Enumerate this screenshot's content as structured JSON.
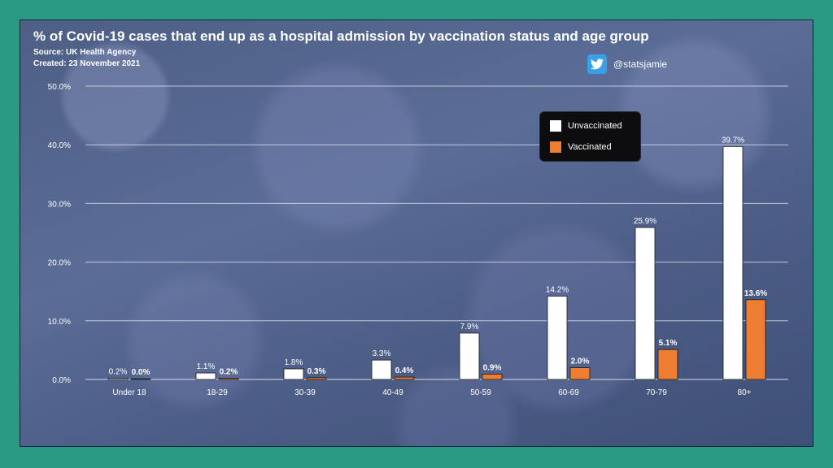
{
  "title": "% of Covid-19 cases that end up as a hospital admission by vaccination status and age group",
  "source": "Source: UK Health Agency",
  "created": "Created: 23 November 2021",
  "twitter": {
    "icon": "twitter-icon",
    "handle": "@statsjamie",
    "color": "#3aa0e6"
  },
  "colors": {
    "background": "#2b9a83",
    "unvaccinated": "#ffffff",
    "vaccinated": "#ed7d31"
  },
  "chart_data": {
    "type": "bar",
    "categories": [
      "Under 18",
      "18-29",
      "30-39",
      "40-49",
      "50-59",
      "60-69",
      "70-79",
      "80+"
    ],
    "series": [
      {
        "name": "Unvaccinated",
        "color": "#ffffff",
        "values": [
          0.2,
          1.1,
          1.8,
          3.3,
          7.9,
          14.2,
          25.9,
          39.7
        ]
      },
      {
        "name": "Vaccinated",
        "color": "#ed7d31",
        "values": [
          0.0,
          0.2,
          0.3,
          0.4,
          0.9,
          2.0,
          5.1,
          13.6
        ]
      }
    ],
    "ylim": [
      0,
      50
    ],
    "yticks": [
      0,
      10,
      20,
      30,
      40,
      50
    ],
    "ytick_labels": [
      "0.0%",
      "10.0%",
      "20.0%",
      "30.0%",
      "40.0%",
      "50.0%"
    ],
    "data_labels": [
      [
        "0.2%",
        "1.1%",
        "1.8%",
        "3.3%",
        "7.9%",
        "14.2%",
        "25.9%",
        "39.7%"
      ],
      [
        "0.0%",
        "0.2%",
        "0.3%",
        "0.4%",
        "0.9%",
        "2.0%",
        "5.1%",
        "13.6%"
      ]
    ],
    "grid": true,
    "legend_position": "top-right"
  }
}
